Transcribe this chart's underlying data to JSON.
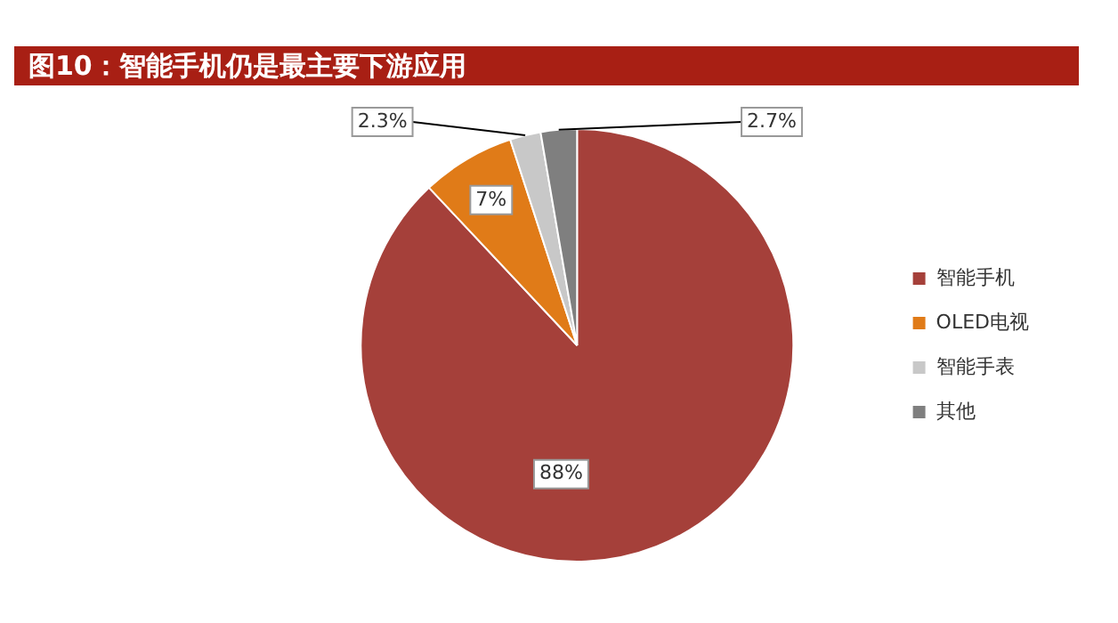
{
  "chart_data": {
    "type": "pie",
    "title": "图10：智能手机仍是最主要下游应用",
    "categories": [
      "智能手机",
      "OLED电视",
      "智能手表",
      "其他"
    ],
    "values": [
      88,
      7,
      2.3,
      2.7
    ],
    "colors": [
      "#a5403a",
      "#e07b18",
      "#c8c8c8",
      "#7f7f7f"
    ],
    "value_labels": [
      "88%",
      "7%",
      "2.3%",
      "2.7%"
    ],
    "legend": "right"
  }
}
